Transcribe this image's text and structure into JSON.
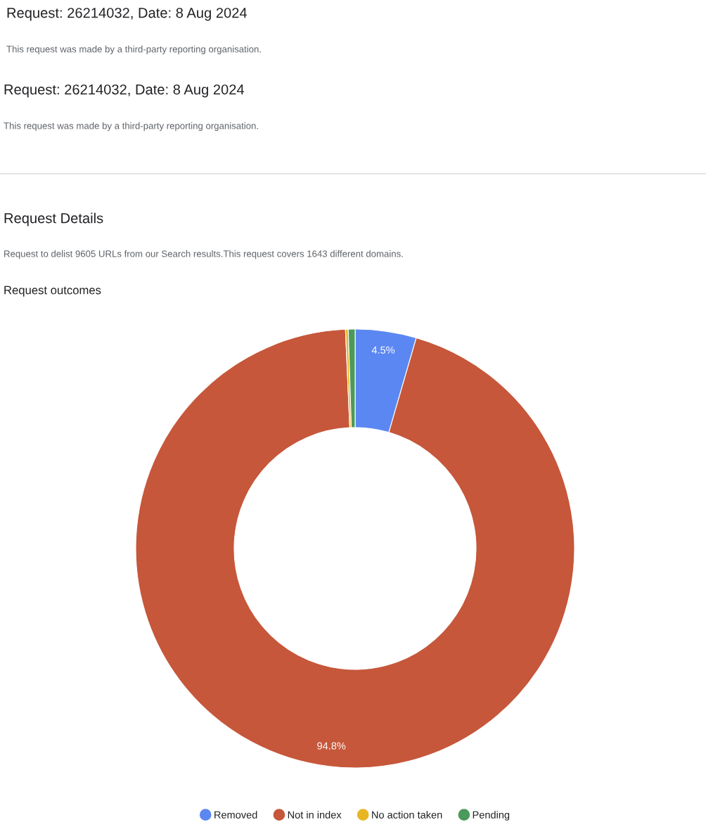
{
  "chart_data": {
    "type": "donut",
    "title": "Request outcomes",
    "annotations": [
      "Request: 26214032, Date: 8 Aug 2024",
      "This request was made by a third-party reporting organisation.",
      "Request: 26214032, Date: 8 Aug 2024",
      "This request was made by a third-party reporting organisation.",
      "Request Details",
      "Request to delist 9605 URLs from our Search results.This request covers 1643 different domains."
    ],
    "categories": [
      "Removed",
      "Not in index",
      "No action taken",
      "Pending"
    ],
    "values": [
      4.5,
      94.8,
      0.2,
      0.5
    ],
    "colors": [
      "#5b87f2",
      "#c6573a",
      "#e8b623",
      "#4b9a5b"
    ],
    "value_labels": [
      "4.5%",
      "94.8%",
      null,
      null
    ],
    "legend": "bottom"
  }
}
